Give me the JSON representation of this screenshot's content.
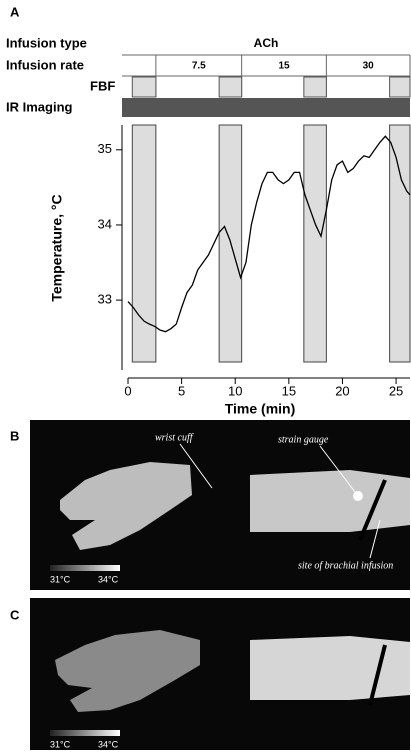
{
  "chart_data": {
    "type": "line",
    "panel": "A",
    "xlabel": "Time (min)",
    "ylabel": "Temperature, °C",
    "xlim": [
      0,
      26.3
    ],
    "ylim": [
      32.07,
      35.33
    ],
    "xticks": [
      0,
      5,
      10,
      15,
      20,
      25
    ],
    "yticks": [
      33,
      34,
      35
    ],
    "color": "#000000",
    "x": [
      0,
      0.5,
      1,
      1.5,
      2,
      2.5,
      3,
      3.5,
      4,
      4.5,
      5,
      5.5,
      6,
      6.5,
      7,
      7.5,
      8,
      8.5,
      9,
      9.5,
      10,
      10.5,
      11,
      11.5,
      12,
      12.5,
      13,
      13.5,
      14,
      14.5,
      15,
      15.5,
      16,
      16.5,
      17,
      17.5,
      18,
      18.5,
      19,
      19.5,
      20,
      20.5,
      21,
      21.5,
      22,
      22.5,
      23,
      23.5,
      24,
      24.5,
      25,
      25.5,
      26,
      26.3
    ],
    "values": [
      32.98,
      32.9,
      32.8,
      32.72,
      32.68,
      32.65,
      32.6,
      32.58,
      32.62,
      32.68,
      32.9,
      33.1,
      33.2,
      33.4,
      33.5,
      33.6,
      33.75,
      33.9,
      33.98,
      33.8,
      33.55,
      33.3,
      33.5,
      34.0,
      34.3,
      34.55,
      34.7,
      34.7,
      34.6,
      34.55,
      34.6,
      34.7,
      34.7,
      34.4,
      34.2,
      34.0,
      33.85,
      34.2,
      34.6,
      34.8,
      34.85,
      34.7,
      34.75,
      34.85,
      34.92,
      34.9,
      35.0,
      35.1,
      35.18,
      35.1,
      34.9,
      34.6,
      34.45,
      34.4
    ],
    "fbf_periods": [
      [
        0.4,
        2.6
      ],
      [
        8.5,
        10.6
      ],
      [
        16.4,
        18.5
      ],
      [
        24.4,
        26.3
      ]
    ],
    "protocol": {
      "infusion_type_label": "Infusion type",
      "infusion_type": "ACh",
      "infusion_rate_label": "Infusion rate",
      "rates": [
        7.5,
        15,
        30
      ],
      "rate_bounds": [
        2.6,
        10.6,
        18.5,
        26.3
      ],
      "fbf_label": "FBF",
      "ir_label": "IR Imaging"
    }
  },
  "panel_b": {
    "label": "B",
    "wrist_cuff": "wrist cuff",
    "strain_gauge": "strain gauge",
    "infusion_site": "site of brachial infusion",
    "scale_min": "31°C",
    "scale_max": "34°C"
  },
  "panel_c": {
    "label": "C",
    "scale_min": "31°C",
    "scale_max": "34°C"
  }
}
